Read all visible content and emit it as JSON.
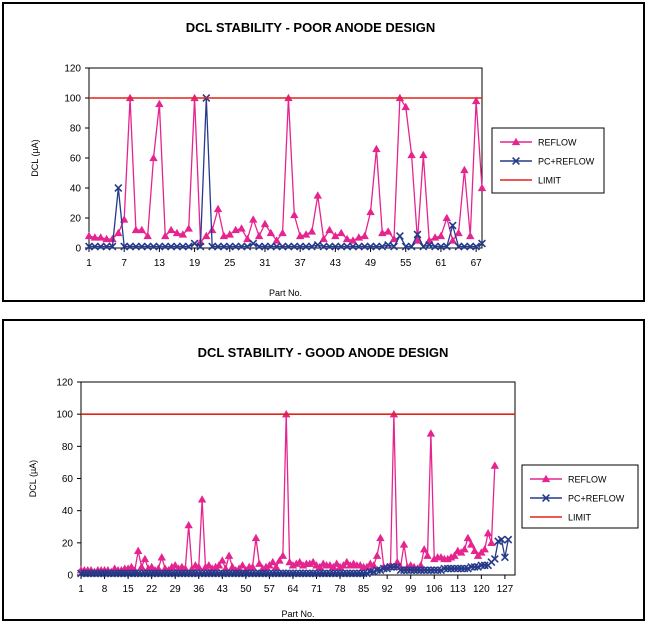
{
  "colors": {
    "reflow": "#e6248f",
    "pc_reflow": "#263a8a",
    "limit": "#e2231a"
  },
  "chart_data": [
    {
      "type": "line",
      "title": "DCL STABILITY - POOR ANODE DESIGN",
      "xlabel": "Part No.",
      "ylabel": "DCL (µA)",
      "ylim": [
        0,
        120
      ],
      "yticks": [
        0,
        20,
        40,
        60,
        80,
        100,
        120
      ],
      "xticks": [
        1,
        7,
        13,
        19,
        25,
        31,
        37,
        43,
        49,
        55,
        61,
        67
      ],
      "xrange": [
        1,
        68
      ],
      "grid": false,
      "legend_position": "right",
      "series": [
        {
          "name": "REFLOW",
          "marker": "triangle",
          "values": [
            8,
            7,
            7,
            6,
            6,
            10,
            19,
            100,
            12,
            12,
            8,
            60,
            96,
            8,
            12,
            10,
            9,
            13,
            100,
            4,
            8,
            12,
            26,
            8,
            9,
            12,
            13,
            6,
            19,
            8,
            16,
            10,
            5,
            10,
            100,
            22,
            8,
            9,
            11,
            35,
            6,
            12,
            8,
            10,
            6,
            5,
            7,
            8,
            24,
            66,
            10,
            11,
            6,
            100,
            94,
            62,
            5,
            62,
            5,
            7,
            8,
            20,
            5,
            10,
            52,
            8,
            98,
            40
          ]
        },
        {
          "name": "PC+REFLOW",
          "marker": "x",
          "values": [
            1,
            1,
            1,
            1,
            1,
            40,
            1,
            1,
            1,
            1,
            1,
            1,
            1,
            1,
            1,
            1,
            1,
            1,
            3,
            1,
            100,
            1,
            1,
            1,
            1,
            1,
            1,
            1,
            3,
            1,
            1,
            1,
            1,
            1,
            1,
            1,
            1,
            1,
            1,
            2,
            1,
            1,
            1,
            1,
            1,
            1,
            1,
            1,
            1,
            1,
            1,
            2,
            1,
            8,
            1,
            1,
            9,
            1,
            2,
            1,
            1,
            1,
            15,
            1,
            1,
            1,
            1,
            3
          ]
        },
        {
          "name": "LIMIT",
          "values": [
            100,
            100
          ]
        }
      ]
    },
    {
      "type": "line",
      "title": "DCL STABILITY - GOOD ANODE DESIGN",
      "xlabel": "Part No.",
      "ylabel": "DCL (µA)",
      "ylim": [
        0,
        120
      ],
      "yticks": [
        0,
        20,
        40,
        60,
        80,
        100,
        120
      ],
      "xticks": [
        1,
        8,
        15,
        22,
        29,
        36,
        43,
        50,
        57,
        64,
        71,
        78,
        85,
        92,
        99,
        106,
        113,
        120,
        127
      ],
      "xrange": [
        1,
        130
      ],
      "grid": false,
      "legend_position": "right",
      "series": [
        {
          "name": "REFLOW",
          "marker": "triangle",
          "values": [
            3,
            3,
            3,
            3,
            2,
            3,
            3,
            3,
            3,
            2,
            4,
            3,
            3,
            4,
            4,
            5,
            3,
            15,
            5,
            10,
            4,
            5,
            3,
            4,
            11,
            4,
            3,
            5,
            6,
            4,
            5,
            4,
            31,
            4,
            6,
            5,
            47,
            5,
            6,
            4,
            5,
            6,
            9,
            4,
            12,
            5,
            3,
            4,
            6,
            3,
            5,
            5,
            23,
            7,
            4,
            5,
            6,
            8,
            5,
            9,
            12,
            100,
            8,
            6,
            7,
            8,
            6,
            7,
            7,
            8,
            6,
            5,
            7,
            6,
            6,
            5,
            7,
            5,
            6,
            8,
            6,
            7,
            6,
            6,
            5,
            5,
            7,
            6,
            12,
            23,
            5,
            5,
            6,
            100,
            8,
            5,
            19,
            5,
            6,
            5,
            4,
            6,
            16,
            12,
            88,
            10,
            11,
            11,
            10,
            10,
            11,
            12,
            15,
            14,
            16,
            23,
            19,
            15,
            12,
            14,
            16,
            26,
            20,
            68
          ]
        },
        {
          "name": "PC+REFLOW",
          "marker": "x",
          "values": [
            1,
            1,
            1,
            1,
            1,
            1,
            1,
            1,
            1,
            1,
            1,
            1,
            1,
            1,
            1,
            1,
            1,
            1,
            1,
            1,
            1,
            1,
            1,
            1,
            1,
            1,
            1,
            1,
            1,
            1,
            1,
            1,
            1,
            1,
            1,
            1,
            1,
            1,
            1,
            1,
            1,
            1,
            1,
            1,
            1,
            1,
            1,
            1,
            1,
            1,
            1,
            1,
            1,
            1,
            1,
            1,
            1,
            1,
            1,
            1,
            1,
            1,
            1,
            1,
            1,
            1,
            1,
            1,
            1,
            1,
            1,
            1,
            1,
            1,
            1,
            1,
            1,
            1,
            1,
            1,
            1,
            1,
            1,
            1,
            1,
            1,
            2,
            2,
            3,
            3,
            4,
            4,
            5,
            5,
            5,
            3,
            3,
            3,
            3,
            3,
            3,
            3,
            3,
            3,
            3,
            3,
            3,
            3,
            4,
            4,
            4,
            4,
            4,
            4,
            4,
            4,
            5,
            5,
            5,
            6,
            6,
            6,
            8,
            10,
            21,
            22,
            11,
            22
          ]
        },
        {
          "name": "LIMIT",
          "values": [
            100,
            100
          ]
        }
      ]
    }
  ]
}
